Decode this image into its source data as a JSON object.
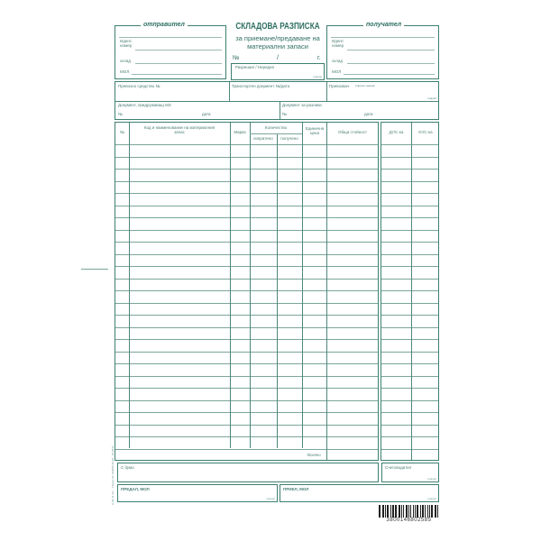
{
  "title": "СКЛАДОВА РАЗПИСКА",
  "subtitle": "за приемане/предаване на материални запаси",
  "number_label": "№",
  "slash": "/",
  "year_label": "г.",
  "sender": {
    "legend": "отправител",
    "id_label": "Идент. номер",
    "warehouse_label": "склад",
    "mol_label": "МОЛ"
  },
  "receiver": {
    "legend": "получател",
    "id_label": "Идент. номер",
    "warehouse_label": "склад",
    "mol_label": "МОЛ"
  },
  "permit_label": "Разрешил / Нередил",
  "signature_label": "подпис",
  "transport": {
    "vehicle": "Превозно средство №",
    "document": "Транспортен документ №/дата",
    "carrier": "Превозвач",
    "carrier_hint": "(трите имена)"
  },
  "docs": {
    "accompanying": "Документ, придружаващ МЗ",
    "difference": "Документ за разлики",
    "no": "№",
    "date": "дата"
  },
  "table": {
    "headers": {
      "no": "№",
      "code": "Код и наименование на материалния запас",
      "brand": "Марка",
      "quantity": "Количество",
      "sent": "изпратено",
      "received": "получено",
      "unit_price": "Единична цена",
      "total": "Обща стойност",
      "debit": "Дт/С-ка",
      "credit": "Кт/С-ка"
    },
    "total_label": "Всичко"
  },
  "in_words_label": "С думи",
  "accountant_label": "Счетоводител",
  "handed_label": "ПРЕДАЛ, МОЛ",
  "accepted_label": "ПРИЕЛ, МОЛ",
  "side_text": "А-35-11 ххх · \"Пекон-33\" 02/865-40-48 · 04.2011",
  "barcode": "3800146802585",
  "colors": {
    "ink": "#3d7f70",
    "text": "#4a7f74"
  }
}
